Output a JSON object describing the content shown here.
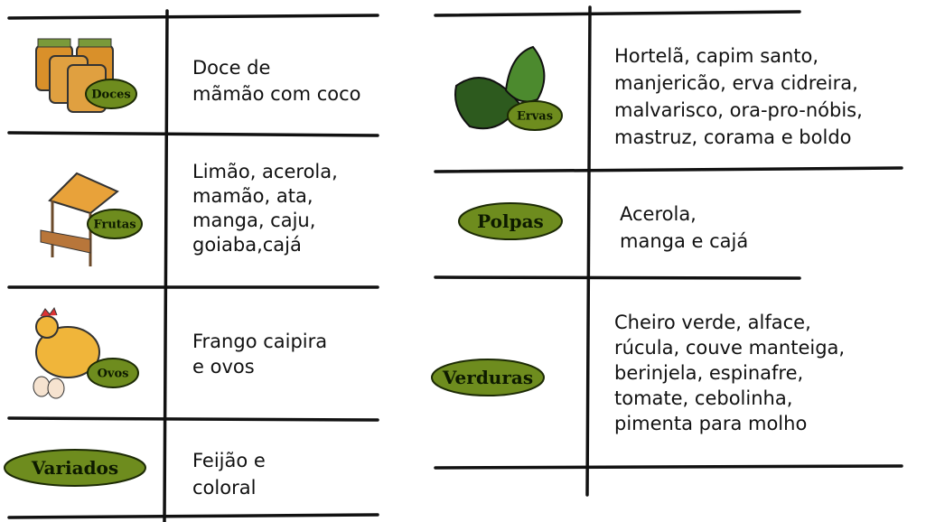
{
  "left": [
    {
      "label": "Doces",
      "text": [
        "Doce de",
        "mãmão com coco"
      ]
    },
    {
      "label": "Frutas",
      "text": [
        "Limão, acerola,",
        "mamão, ata,",
        "manga, caju,",
        "goiaba,cajá"
      ]
    },
    {
      "label": "Ovos",
      "text": [
        "Frango caipira",
        "e ovos"
      ]
    },
    {
      "label": "Variados",
      "text": [
        "Feijão e",
        "coloral"
      ]
    }
  ],
  "right": [
    {
      "label": "Ervas",
      "text": [
        "Hortelã, capim santo,",
        "manjericão, erva cidreira,",
        "malvarisco, ora-pro-nóbis,",
        "mastruz, corama e boldo"
      ]
    },
    {
      "label": "Polpas",
      "text": [
        "Acerola,",
        "manga e cajá"
      ]
    },
    {
      "label": "Verduras",
      "text": [
        "Cheiro verde, alface,",
        "rúcula, couve manteiga,",
        "berinjela, espinafre,",
        "tomate, cebolinha,",
        "pimenta para molho"
      ]
    }
  ]
}
